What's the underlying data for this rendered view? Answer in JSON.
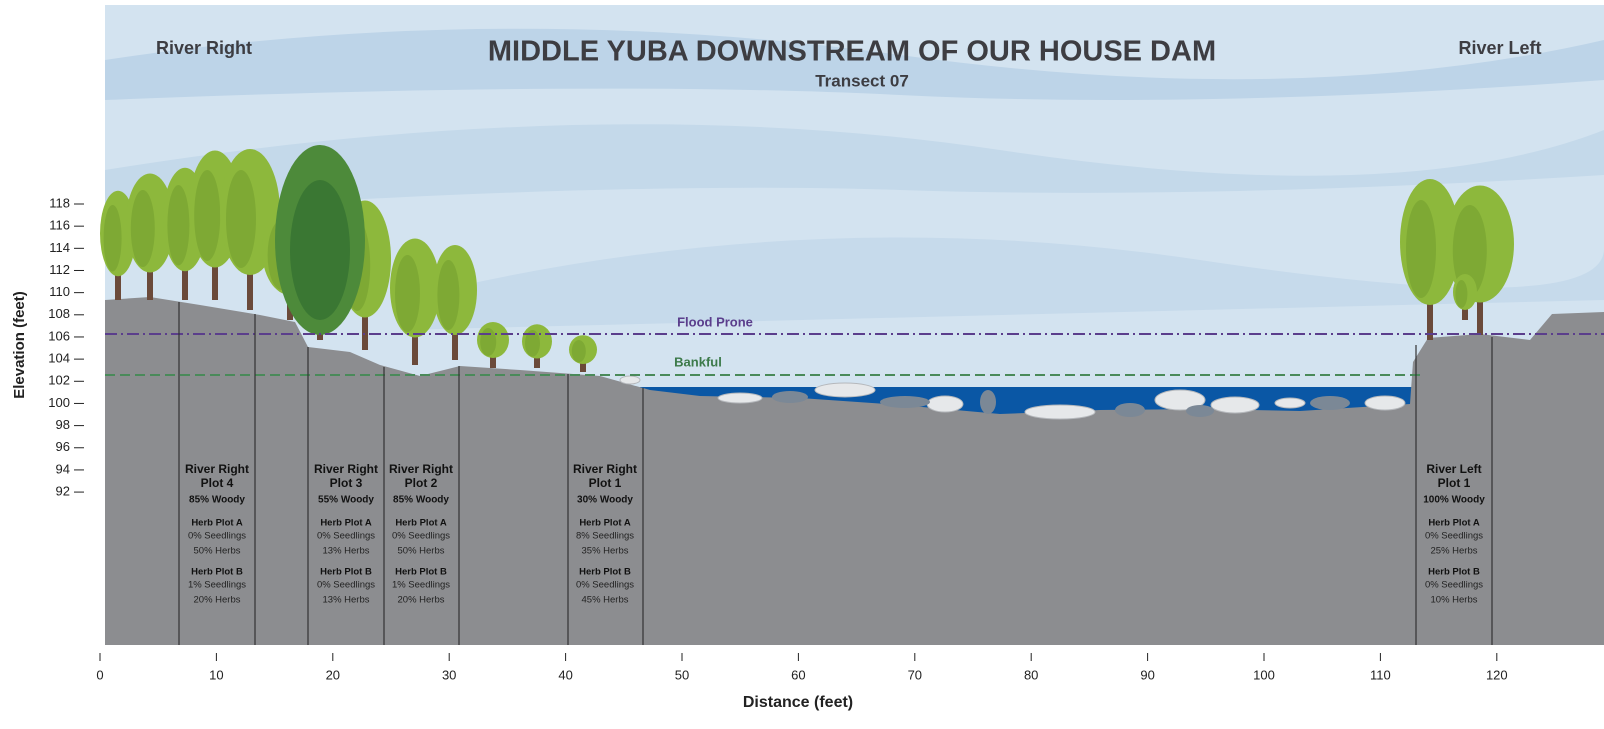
{
  "header": {
    "title": "MIDDLE YUBA DOWNSTREAM OF OUR HOUSE DAM",
    "subtitle": "Transect 07"
  },
  "banks": {
    "left_label": "River Right",
    "right_label": "River Left"
  },
  "lines": {
    "flood_prone": "Flood Prone",
    "bankful": "Bankful"
  },
  "axes": {
    "x_label": "Distance (feet)",
    "y_label": "Elevation (feet)",
    "xticks": [
      0,
      10,
      20,
      30,
      40,
      50,
      60,
      70,
      80,
      90,
      100,
      110,
      120
    ],
    "yticks": [
      118,
      116,
      114,
      112,
      110,
      108,
      106,
      104,
      102,
      100,
      98,
      96,
      94,
      92
    ]
  },
  "plots": [
    {
      "title_lines": [
        "River Right",
        "Plot 4"
      ],
      "woody": "85% Woody",
      "herb_plots": [
        {
          "name": "Herb Plot A",
          "seedlings": "0% Seedlings",
          "herbs": "50% Herbs"
        },
        {
          "name": "Herb Plot B",
          "seedlings": "1% Seedlings",
          "herbs": "20% Herbs"
        }
      ]
    },
    {
      "title_lines": [
        "River Right",
        "Plot 3"
      ],
      "woody": "55% Woody",
      "herb_plots": [
        {
          "name": "Herb Plot A",
          "seedlings": "0% Seedlings",
          "herbs": "13% Herbs"
        },
        {
          "name": "Herb Plot B",
          "seedlings": "0% Seedlings",
          "herbs": "13% Herbs"
        }
      ]
    },
    {
      "title_lines": [
        "River Right",
        "Plot 2"
      ],
      "woody": "85% Woody",
      "herb_plots": [
        {
          "name": "Herb Plot A",
          "seedlings": "0% Seedlings",
          "herbs": "50% Herbs"
        },
        {
          "name": "Herb Plot B",
          "seedlings": "1% Seedlings",
          "herbs": "20% Herbs"
        }
      ]
    },
    {
      "title_lines": [
        "River Right",
        "Plot 1"
      ],
      "woody": "30% Woody",
      "herb_plots": [
        {
          "name": "Herb Plot A",
          "seedlings": "8% Seedlings",
          "herbs": "35% Herbs"
        },
        {
          "name": "Herb Plot B",
          "seedlings": "0% Seedlings",
          "herbs": "45% Herbs"
        }
      ]
    },
    {
      "title_lines": [
        "River Left",
        "Plot 1"
      ],
      "woody": "100% Woody",
      "herb_plots": [
        {
          "name": "Herb Plot A",
          "seedlings": "0% Seedlings",
          "herbs": "25% Herbs"
        },
        {
          "name": "Herb Plot B",
          "seedlings": "0% Seedlings",
          "herbs": "10% Herbs"
        }
      ]
    }
  ]
}
